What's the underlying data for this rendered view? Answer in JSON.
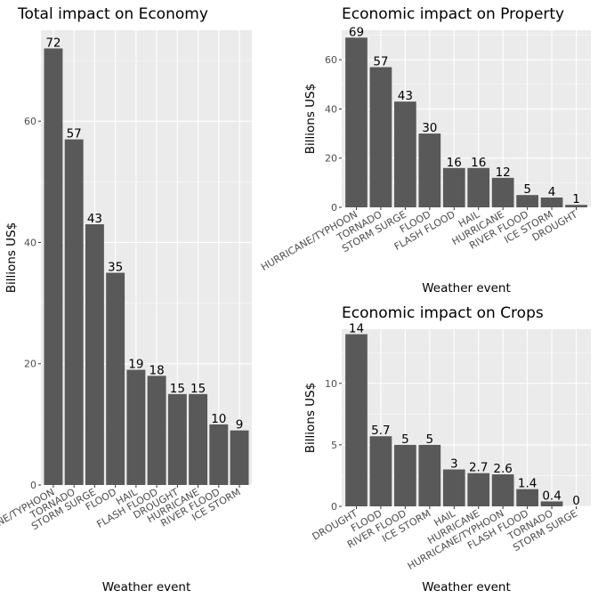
{
  "chart_data": [
    {
      "type": "bar",
      "title": "Total impact on Economy",
      "xlabel": "Weather event",
      "ylabel": "Billions US$",
      "ylim": [
        0,
        75
      ],
      "yticks": [
        0,
        20,
        40,
        60
      ],
      "grid": true,
      "categories": [
        "HURRICANE/TYPHOON",
        "TORNADO",
        "STORM SURGE",
        "FLOOD",
        "HAIL",
        "FLASH FLOOD",
        "DROUGHT",
        "HURRICANE",
        "RIVER FLOOD",
        "ICE STORM"
      ],
      "values": [
        72,
        57,
        43,
        35,
        19,
        18,
        15,
        15,
        10,
        9
      ],
      "value_labels": [
        "72",
        "57",
        "43",
        "35",
        "19",
        "18",
        "15",
        "15",
        "10",
        "9"
      ]
    },
    {
      "type": "bar",
      "title": "Economic impact on Property",
      "xlabel": "Weather event",
      "ylabel": "Billions US$",
      "ylim": [
        0,
        72
      ],
      "yticks": [
        0,
        20,
        40,
        60
      ],
      "grid": true,
      "categories": [
        "HURRICANE/TYPHOON",
        "TORNADO",
        "STORM SURGE",
        "FLOOD",
        "FLASH FLOOD",
        "HAIL",
        "HURRICANE",
        "RIVER FLOOD",
        "ICE STORM",
        "DROUGHT"
      ],
      "values": [
        69,
        57,
        43,
        30,
        16,
        16,
        12,
        5,
        4,
        1
      ],
      "value_labels": [
        "69",
        "57",
        "43",
        "30",
        "16",
        "16",
        "12",
        "5",
        "4",
        "1"
      ]
    },
    {
      "type": "bar",
      "title": "Economic impact on Crops",
      "xlabel": "Weather event",
      "ylabel": "Billions US$",
      "ylim": [
        0,
        14.4
      ],
      "yticks": [
        0,
        5,
        10
      ],
      "grid": true,
      "categories": [
        "DROUGHT",
        "FLOOD",
        "RIVER FLOOD",
        "ICE STORM",
        "HAIL",
        "HURRICANE",
        "HURRICANE/TYPHOON",
        "FLASH FLOOD",
        "TORNADO",
        "STORM SURGE"
      ],
      "values": [
        14,
        5.7,
        5,
        5,
        3,
        2.7,
        2.6,
        1.4,
        0.4,
        0
      ],
      "value_labels": [
        "14",
        "5.7",
        "5",
        "5",
        "3",
        "2.7",
        "2.6",
        "1.4",
        "0.4",
        "0"
      ]
    }
  ]
}
